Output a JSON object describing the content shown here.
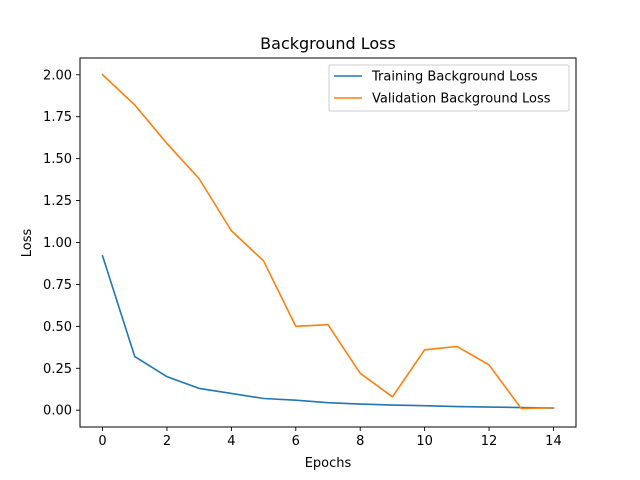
{
  "chart_data": {
    "type": "line",
    "title": "Background Loss",
    "xlabel": "Epochs",
    "ylabel": "Loss",
    "xlim": [
      -0.7,
      14.7
    ],
    "ylim": [
      -0.1,
      2.1
    ],
    "x_ticks": [
      0,
      2,
      4,
      6,
      8,
      10,
      12,
      14
    ],
    "y_ticks": [
      "0.00",
      "0.25",
      "0.50",
      "0.75",
      "1.00",
      "1.25",
      "1.50",
      "1.75",
      "2.00"
    ],
    "grid": false,
    "legend_position": "top-right",
    "x": [
      0,
      1,
      2,
      3,
      4,
      5,
      6,
      7,
      8,
      9,
      10,
      11,
      12,
      13,
      14
    ],
    "series": [
      {
        "name": "Training Background Loss",
        "color": "#1f77b4",
        "values": [
          0.92,
          0.32,
          0.2,
          0.13,
          0.1,
          0.07,
          0.06,
          0.045,
          0.037,
          0.031,
          0.027,
          0.022,
          0.019,
          0.016,
          0.013
        ]
      },
      {
        "name": "Validation Background Loss",
        "color": "#ff7f0e",
        "values": [
          2.0,
          1.82,
          1.59,
          1.38,
          1.07,
          0.89,
          0.5,
          0.51,
          0.22,
          0.08,
          0.36,
          0.38,
          0.27,
          0.01,
          0.015
        ]
      }
    ]
  }
}
